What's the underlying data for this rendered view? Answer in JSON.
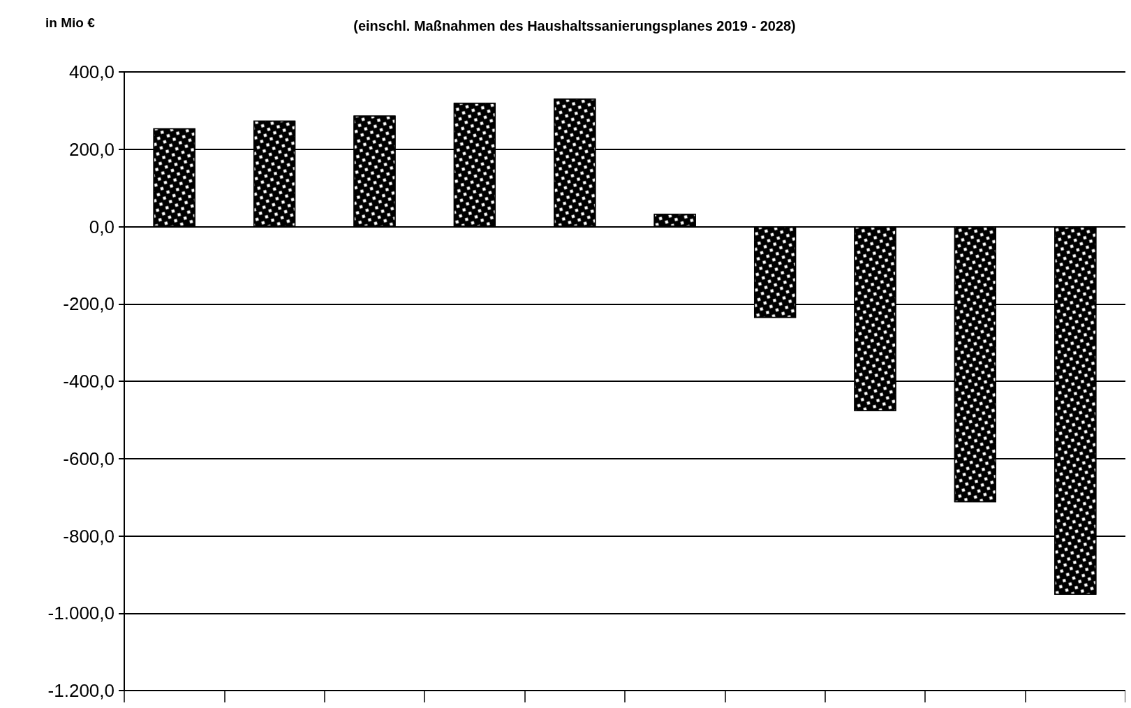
{
  "chart_data": {
    "type": "bar",
    "subtitle": "(einschl. Maßnahmen des Haushaltssanierungsplanes 2019 - 2028)",
    "ylabel": "in Mio €",
    "categories": [
      null,
      null,
      null,
      null,
      null,
      null,
      null,
      null,
      null,
      null
    ],
    "values": [
      254,
      274,
      287,
      320,
      331,
      33,
      -236,
      -477,
      -713,
      -952
    ],
    "color": "#000000",
    "ylim": [
      -1200,
      400
    ],
    "yticks": [
      {
        "value": -1200,
        "label": "-1.200,0"
      },
      {
        "value": -1000,
        "label": "-1.000,0"
      },
      {
        "value": -800,
        "label": "-800,0"
      },
      {
        "value": -600,
        "label": "-600,0"
      },
      {
        "value": -400,
        "label": "-400,0"
      },
      {
        "value": -200,
        "label": "-200,0"
      },
      {
        "value": 0,
        "label": "0,0"
      },
      {
        "value": 200,
        "label": "200,0"
      },
      {
        "value": 400,
        "label": "400,0"
      }
    ],
    "grid": "y"
  }
}
